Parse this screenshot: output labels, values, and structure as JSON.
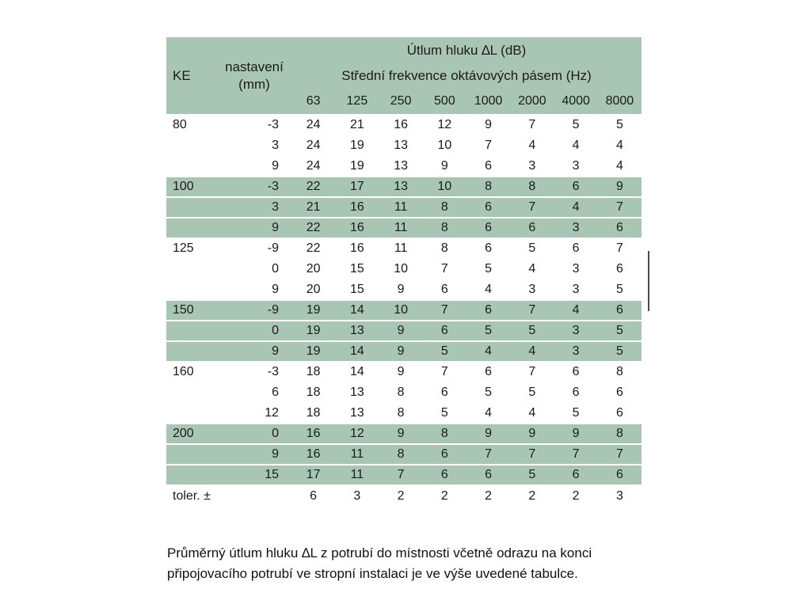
{
  "table": {
    "title": "Útlum hluku ∆L (dB)",
    "subtitle": "Střední frekvence oktávových pásem (Hz)",
    "col_ke": "KE",
    "col_setting_line1": "nastavení",
    "col_setting_line2": "(mm)",
    "frequencies": [
      "63",
      "125",
      "250",
      "500",
      "1000",
      "2000",
      "4000",
      "8000"
    ],
    "groups": [
      {
        "ke": "80",
        "shade": "white",
        "rows": [
          {
            "setting": "-3",
            "values": [
              24,
              21,
              16,
              12,
              9,
              7,
              5,
              5
            ]
          },
          {
            "setting": "3",
            "values": [
              24,
              19,
              13,
              10,
              7,
              4,
              4,
              4
            ]
          },
          {
            "setting": "9",
            "values": [
              24,
              19,
              13,
              9,
              6,
              3,
              3,
              4
            ]
          }
        ]
      },
      {
        "ke": "100",
        "shade": "green",
        "rows": [
          {
            "setting": "-3",
            "values": [
              22,
              17,
              13,
              10,
              8,
              8,
              6,
              9
            ]
          },
          {
            "setting": "3",
            "values": [
              21,
              16,
              11,
              8,
              6,
              7,
              4,
              7
            ]
          },
          {
            "setting": "9",
            "values": [
              22,
              16,
              11,
              8,
              6,
              6,
              3,
              6
            ]
          }
        ]
      },
      {
        "ke": "125",
        "shade": "white",
        "rows": [
          {
            "setting": "-9",
            "values": [
              22,
              16,
              11,
              8,
              6,
              5,
              6,
              7
            ]
          },
          {
            "setting": "0",
            "values": [
              20,
              15,
              10,
              7,
              5,
              4,
              3,
              6
            ]
          },
          {
            "setting": "9",
            "values": [
              20,
              15,
              9,
              6,
              4,
              3,
              3,
              5
            ]
          }
        ]
      },
      {
        "ke": "150",
        "shade": "green",
        "rows": [
          {
            "setting": "-9",
            "values": [
              19,
              14,
              10,
              7,
              6,
              7,
              4,
              6
            ]
          },
          {
            "setting": "0",
            "values": [
              19,
              13,
              9,
              6,
              5,
              5,
              3,
              5
            ]
          },
          {
            "setting": "9",
            "values": [
              19,
              14,
              9,
              5,
              4,
              4,
              3,
              5
            ]
          }
        ]
      },
      {
        "ke": "160",
        "shade": "white",
        "rows": [
          {
            "setting": "-3",
            "values": [
              18,
              14,
              9,
              7,
              6,
              7,
              6,
              8
            ]
          },
          {
            "setting": "6",
            "values": [
              18,
              13,
              8,
              6,
              5,
              5,
              6,
              6
            ]
          },
          {
            "setting": "12",
            "values": [
              18,
              13,
              8,
              5,
              4,
              4,
              5,
              6
            ]
          }
        ]
      },
      {
        "ke": "200",
        "shade": "green",
        "rows": [
          {
            "setting": "0",
            "values": [
              16,
              12,
              9,
              8,
              9,
              9,
              9,
              8
            ]
          },
          {
            "setting": "9",
            "values": [
              16,
              11,
              8,
              6,
              7,
              7,
              7,
              7
            ]
          },
          {
            "setting": "15",
            "values": [
              17,
              11,
              7,
              6,
              6,
              5,
              6,
              6
            ]
          }
        ]
      }
    ],
    "tolerance_row": {
      "label": "toler. ±",
      "values": [
        6,
        3,
        2,
        2,
        2,
        2,
        2,
        3
      ]
    }
  },
  "caption": "Průměrný útlum hluku ∆L z potrubí do místnosti včetně odrazu na konci připojovacího potrubí ve stropní instalaci je ve výše uvedené tabulce.",
  "colors": {
    "header_green": "#a9c6b5",
    "row_green": "#a9c6b5",
    "text": "#1a1a1a"
  }
}
